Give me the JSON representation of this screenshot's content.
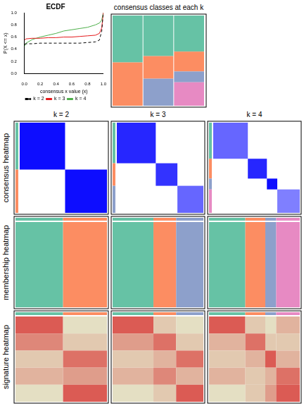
{
  "chart_data": [
    {
      "type": "line",
      "title": "ECDF",
      "x_label": "consensus x value (x)",
      "y_label": "P(X <= x)",
      "x": [
        0,
        0.02,
        0.1,
        0.2,
        0.3,
        0.4,
        0.5,
        0.6,
        0.7,
        0.8,
        0.9,
        0.95,
        0.98,
        1.0
      ],
      "series": [
        {
          "name": "k = 2",
          "color": "#000000",
          "line_style": "dashed",
          "values": [
            0.48,
            0.49,
            0.49,
            0.5,
            0.5,
            0.5,
            0.5,
            0.5,
            0.5,
            0.51,
            0.52,
            0.55,
            0.7,
            1.0
          ]
        },
        {
          "name": "k = 3",
          "color": "#E41A1C",
          "line_style": "solid",
          "values": [
            0.55,
            0.57,
            0.58,
            0.58,
            0.59,
            0.59,
            0.6,
            0.6,
            0.61,
            0.62,
            0.63,
            0.66,
            0.75,
            1.0
          ]
        },
        {
          "name": "k = 4",
          "color": "#4DAF4A",
          "line_style": "solid",
          "values": [
            0.45,
            0.5,
            0.56,
            0.6,
            0.63,
            0.66,
            0.7,
            0.72,
            0.74,
            0.76,
            0.8,
            0.83,
            0.88,
            1.0
          ]
        }
      ],
      "xlim": [
        0,
        1
      ],
      "xticks": [
        {
          "value": 0,
          "label": "0.0"
        },
        {
          "value": 0.2,
          "label": "0.2"
        },
        {
          "value": 0.4,
          "label": "0.4"
        },
        {
          "value": 0.6,
          "label": "0.6"
        },
        {
          "value": 0.8,
          "label": "0.8"
        },
        {
          "value": 1,
          "label": "1.0"
        }
      ],
      "ylim": [
        0,
        1
      ],
      "yticks": [
        {
          "value": 0,
          "label": "0.0"
        },
        {
          "value": 0.2,
          "label": "0.2"
        },
        {
          "value": 0.4,
          "label": "0.4"
        },
        {
          "value": 0.6,
          "label": "0.6"
        },
        {
          "value": 0.8,
          "label": "0.8"
        },
        {
          "value": 1,
          "label": "1.0"
        }
      ],
      "legend": "bottom",
      "grid": false
    }
  ],
  "panels": {
    "classes_title": "consensus classes at each k",
    "row_labels": [
      "consensus heatmap",
      "membership heatmap",
      "signature heatmap"
    ],
    "class_colors": [
      "#66C2A5",
      "#FC8D62",
      "#8DA0CB",
      "#E78AC3"
    ],
    "consensus_color": "#0000FF",
    "signature_low": "#E5F5D5",
    "signature_high": "#D7191C",
    "k": [
      {
        "label": "k = 2",
        "class_sizes": [
          52,
          48
        ],
        "consensus": [
          0.95,
          0.95
        ],
        "signature": [
          [
            0.7,
            0.1
          ],
          [
            0.5,
            0.2
          ],
          [
            0.2,
            0.6
          ],
          [
            0.3,
            0.4
          ],
          [
            0.1,
            0.7
          ]
        ]
      },
      {
        "label": "k = 3",
        "class_sizes": [
          45,
          25,
          30
        ],
        "consensus": [
          0.85,
          0.8,
          0.6
        ],
        "signature": [
          [
            0.7,
            0.2,
            0.1
          ],
          [
            0.4,
            0.6,
            0.2
          ],
          [
            0.2,
            0.3,
            0.6
          ],
          [
            0.3,
            0.5,
            0.3
          ],
          [
            0.1,
            0.2,
            0.7
          ]
        ]
      },
      {
        "label": "k = 4",
        "class_sizes": [
          40,
          22,
          12,
          26
        ],
        "consensus": [
          0.6,
          0.85,
          0.95,
          0.5
        ],
        "signature": [
          [
            0.7,
            0.2,
            0.1,
            0.3
          ],
          [
            0.3,
            0.6,
            0.2,
            0.2
          ],
          [
            0.2,
            0.3,
            0.7,
            0.3
          ],
          [
            0.3,
            0.2,
            0.3,
            0.6
          ],
          [
            0.1,
            0.2,
            0.4,
            0.7
          ]
        ]
      }
    ]
  }
}
